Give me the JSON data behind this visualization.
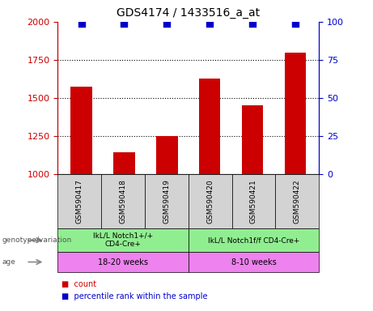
{
  "title": "GDS4174 / 1433516_a_at",
  "samples": [
    "GSM590417",
    "GSM590418",
    "GSM590419",
    "GSM590420",
    "GSM590421",
    "GSM590422"
  ],
  "counts": [
    1575,
    1145,
    1250,
    1625,
    1450,
    1800
  ],
  "percentile_ranks": [
    99,
    99,
    99,
    99,
    99,
    99
  ],
  "ylim_left": [
    1000,
    2000
  ],
  "ylim_right": [
    0,
    100
  ],
  "yticks_left": [
    1000,
    1250,
    1500,
    1750,
    2000
  ],
  "yticks_right": [
    0,
    25,
    50,
    75,
    100
  ],
  "bar_color": "#cc0000",
  "dot_color": "#0000cc",
  "genotype_groups": [
    {
      "label": "IkL/L Notch1+/+\nCD4-Cre+",
      "start": 0,
      "end": 3,
      "color": "#90ee90"
    },
    {
      "label": "IkL/L Notch1f/f CD4-Cre+",
      "start": 3,
      "end": 6,
      "color": "#90ee90"
    }
  ],
  "age_groups": [
    {
      "label": "18-20 weeks",
      "start": 0,
      "end": 3,
      "color": "#ee82ee"
    },
    {
      "label": "8-10 weeks",
      "start": 3,
      "end": 6,
      "color": "#ee82ee"
    }
  ],
  "label_genotype": "genotype/variation",
  "label_age": "age",
  "legend_count_color": "#cc0000",
  "legend_percentile_color": "#0000cc",
  "legend_count_label": "count",
  "legend_percentile_label": "percentile rank within the sample",
  "left_axis_color": "#cc0000",
  "right_axis_color": "#0000cc",
  "sample_box_color": "#d3d3d3",
  "bar_width": 0.5,
  "dot_marker": "s",
  "dot_size": 30
}
